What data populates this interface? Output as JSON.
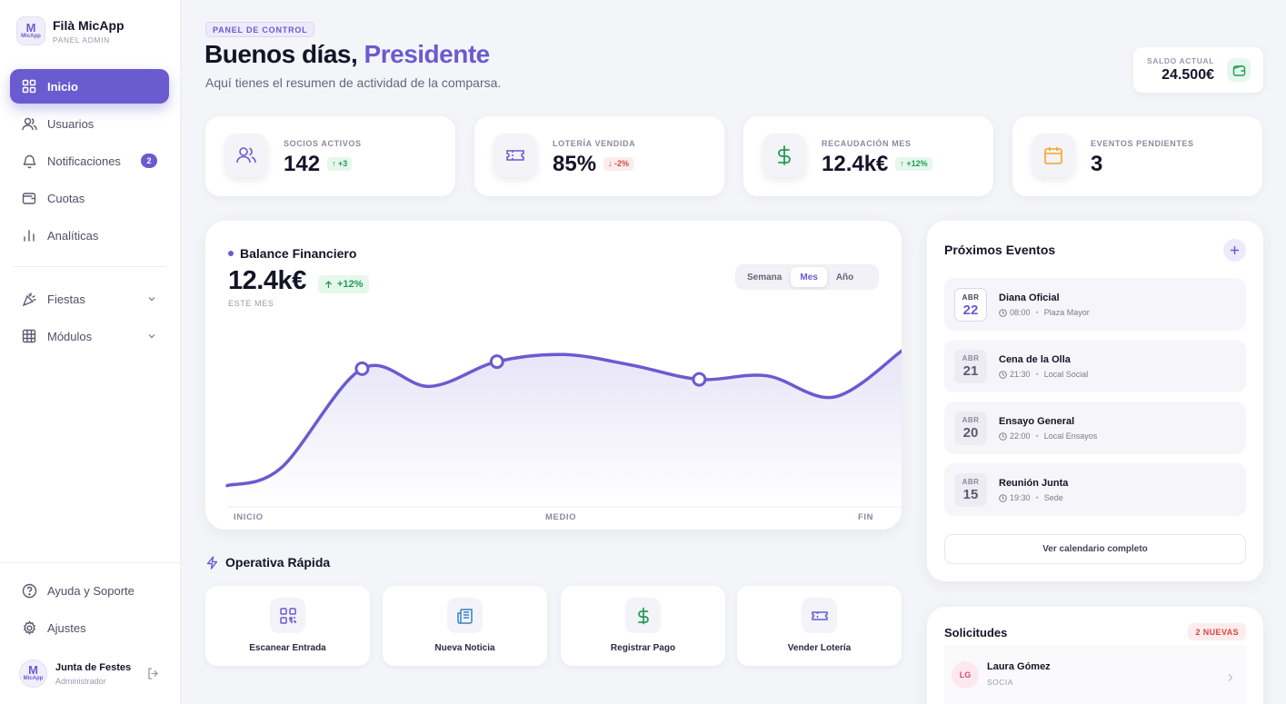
{
  "brand": {
    "name": "Filà MicApp",
    "sub": "PANEL ADMIN",
    "logo_m": "M",
    "logo_text": "MicApp"
  },
  "nav": {
    "items": [
      {
        "label": "Inicio",
        "icon": "grid-icon",
        "active": true
      },
      {
        "label": "Usuarios",
        "icon": "users-icon"
      },
      {
        "label": "Notificaciones",
        "icon": "bell-icon",
        "badge": "2"
      },
      {
        "label": "Cuotas",
        "icon": "wallet-icon"
      },
      {
        "label": "Analíticas",
        "icon": "bar-chart-icon"
      }
    ],
    "groups": [
      {
        "label": "Fiestas",
        "icon": "party-popper-icon"
      },
      {
        "label": "Módulos",
        "icon": "table-grid-icon"
      }
    ],
    "footer": [
      {
        "label": "Ayuda y Soporte",
        "icon": "help-circle-icon"
      },
      {
        "label": "Ajustes",
        "icon": "gear-icon"
      }
    ]
  },
  "user": {
    "name": "Junta de Festes",
    "role": "Administrador"
  },
  "header": {
    "kicker": "PANEL DE CONTROL",
    "greeting": "Buenos días, ",
    "greeting_name": "Presidente",
    "subtitle": "Aquí tienes el resumen de actividad de la comparsa."
  },
  "balance": {
    "label": "SALDO ACTUAL",
    "value": "24.500€"
  },
  "stats": [
    {
      "label": "SOCIOS ACTIVOS",
      "value": "142",
      "delta": "↑ +3",
      "trend": "up",
      "icon": "users-icon"
    },
    {
      "label": "LOTERÍA VENDIDA",
      "value": "85%",
      "delta": "↓ -2%",
      "trend": "down",
      "icon": "ticket-icon"
    },
    {
      "label": "RECAUDACIÓN MES",
      "value": "12.4k€",
      "delta": "↑ +12%",
      "trend": "up",
      "icon": "dollar-icon"
    },
    {
      "label": "EVENTOS PENDIENTES",
      "value": "3",
      "delta": "",
      "trend": "",
      "icon": "calendar-icon"
    }
  ],
  "chart": {
    "title": "Balance Financiero",
    "value": "12.4k€",
    "delta": "+12%",
    "period": "ESTE MES",
    "tabs": [
      "Semana",
      "Mes",
      "Año"
    ],
    "active_tab": "Mes",
    "x_labels": [
      "INICIO",
      "MEDIO",
      "FIN"
    ]
  },
  "chart_data": {
    "type": "area",
    "x": [
      0,
      0.08,
      0.2,
      0.3,
      0.4,
      0.5,
      0.6,
      0.7,
      0.8,
      0.9,
      1.0
    ],
    "y": [
      0.12,
      0.22,
      0.78,
      0.68,
      0.82,
      0.86,
      0.8,
      0.72,
      0.74,
      0.62,
      0.88
    ],
    "markers": [
      2,
      4,
      7
    ],
    "xlabels": [
      "INICIO",
      "MEDIO",
      "FIN"
    ],
    "ylim": [
      0,
      1
    ],
    "grid": false,
    "accent": "#6a5bd0"
  },
  "quick": {
    "title": "Operativa Rápida",
    "actions": [
      {
        "label": "Escanear Entrada",
        "icon": "qr-code-icon"
      },
      {
        "label": "Nueva Noticia",
        "icon": "newspaper-icon"
      },
      {
        "label": "Registrar Pago",
        "icon": "dollar-icon"
      },
      {
        "label": "Vender Lotería",
        "icon": "ticket-icon"
      }
    ]
  },
  "events": {
    "title": "Próximos Eventos",
    "items": [
      {
        "month": "ABR",
        "day": "22",
        "name": "Diana Oficial",
        "time": "08:00",
        "place": "Plaza Mayor"
      },
      {
        "month": "ABR",
        "day": "21",
        "name": "Cena de la Olla",
        "time": "21:30",
        "place": "Local Social"
      },
      {
        "month": "ABR",
        "day": "20",
        "name": "Ensayo General",
        "time": "22:00",
        "place": "Local Ensayos"
      },
      {
        "month": "ABR",
        "day": "15",
        "name": "Reunión Junta",
        "time": "19:30",
        "place": "Sede"
      }
    ],
    "calendar_button": "Ver calendario completo"
  },
  "requests": {
    "title": "Solicitudes",
    "badge": "2 NUEVAS",
    "items": [
      {
        "initials": "LG",
        "name": "Laura Gómez",
        "role": "SOCIA"
      }
    ]
  },
  "colors": {
    "accent": "#6a5bd0",
    "success": "#1f9d55",
    "danger": "#d64545",
    "warning": "#f5a524"
  }
}
